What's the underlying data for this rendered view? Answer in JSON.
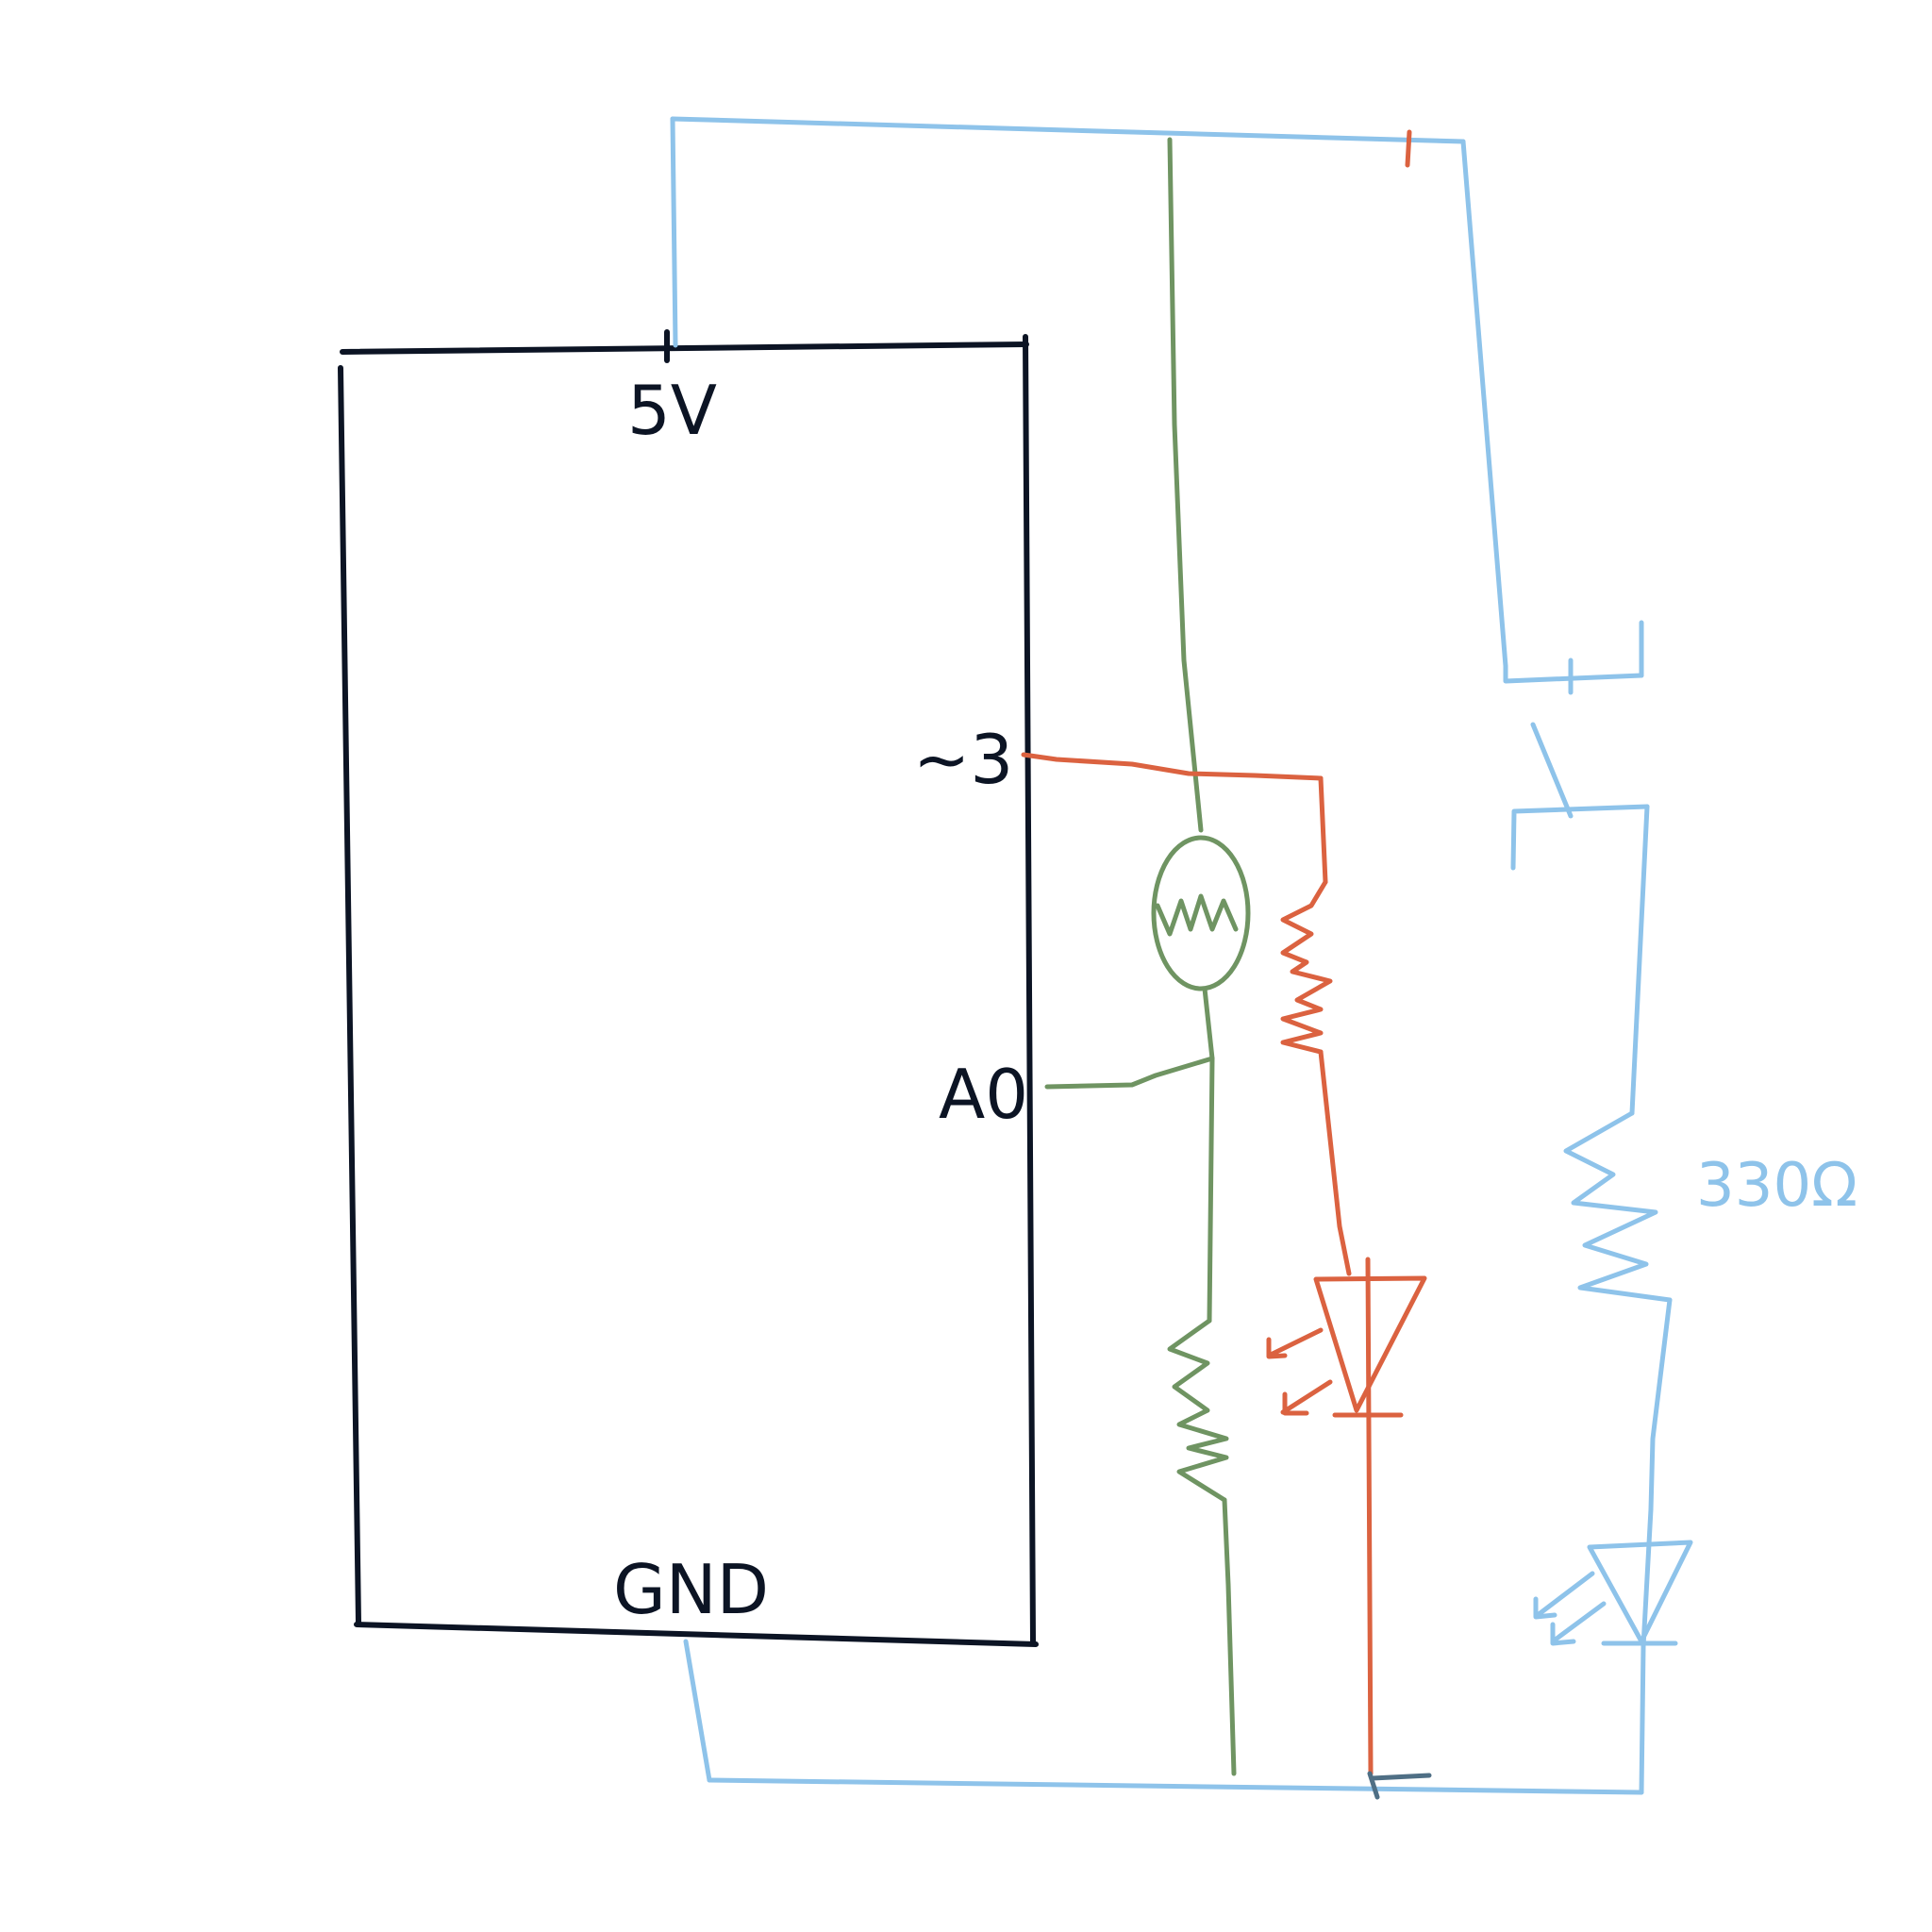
{
  "labels": {
    "board_5v": "5V",
    "board_gnd": "GND",
    "pin_d3": "~3",
    "pin_a0": "A0",
    "resistor_value": "330Ω"
  },
  "colors": {
    "board": "#0c1424",
    "power_loop": "#8ec3ea",
    "sensor_branch": "#6f9462",
    "led_branch": "#db6240",
    "ground_tick": "#4f6f85",
    "background": "#ffffff"
  }
}
